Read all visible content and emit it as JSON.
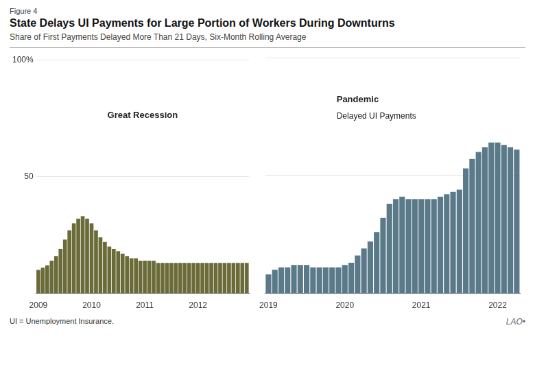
{
  "figure_label": "Figure 4",
  "title": "State Delays UI Payments for Large Portion of Workers During Downturns",
  "subtitle": "Share of First Payments Delayed More Than 21 Days, Six-Month Rolling Average",
  "footer": "UI = Unemployment Insurance.",
  "watermark": "LAO•",
  "chart_data": [
    {
      "type": "bar",
      "categories": [
        "2009",
        null,
        null,
        null,
        null,
        null,
        null,
        null,
        null,
        null,
        null,
        null,
        "2010",
        null,
        null,
        null,
        null,
        null,
        null,
        null,
        null,
        null,
        null,
        null,
        "2011",
        null,
        null,
        null,
        null,
        null,
        null,
        null,
        null,
        null,
        null,
        null,
        "2012",
        null,
        null,
        null,
        null,
        null,
        null,
        null,
        null,
        null,
        null,
        null
      ],
      "values": [
        10,
        11,
        12,
        14,
        16,
        19,
        23,
        27,
        30,
        32,
        33,
        32,
        30,
        27,
        24,
        22,
        20,
        19,
        18,
        17,
        16,
        15,
        15,
        14,
        14,
        14,
        14,
        13,
        13,
        13,
        13,
        13,
        13,
        13,
        13,
        13,
        13,
        13,
        13,
        13,
        13,
        13,
        13,
        13,
        13,
        13,
        13,
        13
      ],
      "color": "#6b6b3a",
      "ylim": [
        0,
        100
      ],
      "yticks": [
        50,
        {
          "value": 100,
          "label": "100%"
        }
      ],
      "grid": true,
      "annotations": [
        "Great Recession"
      ]
    },
    {
      "type": "bar",
      "categories": [
        "2019",
        null,
        null,
        null,
        null,
        null,
        null,
        null,
        null,
        null,
        null,
        null,
        "2020",
        null,
        null,
        null,
        null,
        null,
        null,
        null,
        null,
        null,
        null,
        null,
        "2021",
        null,
        null,
        null,
        null,
        null,
        null,
        null,
        null,
        null,
        null,
        null,
        "2022",
        null,
        null,
        null
      ],
      "values": [
        8,
        10,
        11,
        11,
        12,
        12,
        12,
        11,
        11,
        11,
        11,
        11,
        12,
        13,
        16,
        19,
        22,
        26,
        32,
        38,
        40,
        41,
        40,
        40,
        40,
        40,
        40,
        41,
        42,
        43,
        44,
        53,
        57,
        60,
        62,
        64,
        64,
        63,
        62,
        61
      ],
      "color": "#5a7a8a",
      "ylim": [
        0,
        100
      ],
      "yticks": [
        50,
        100
      ],
      "grid": true,
      "tick_labels": "x",
      "annotations": [
        "Pandemic",
        "Delayed UI Payments"
      ]
    }
  ]
}
